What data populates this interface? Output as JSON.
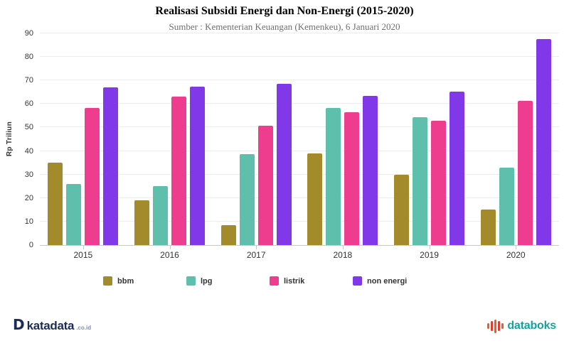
{
  "header": {
    "title": "Realisasi Subsidi Energi dan Non-Energi (2015-2020)",
    "subtitle": "Sumber : Kementerian Keuangan (Kemenkeu), 6 Januari 2020"
  },
  "chart_data": {
    "type": "bar",
    "categories": [
      "2015",
      "2016",
      "2017",
      "2018",
      "2019",
      "2020"
    ],
    "series": [
      {
        "name": "bbm",
        "color": "#a38b2c",
        "values": [
          35.0,
          19.0,
          8.4,
          39.0,
          30.0,
          15.0
        ]
      },
      {
        "name": "lpg",
        "color": "#5dbfac",
        "values": [
          26.0,
          25.2,
          38.7,
          58.3,
          54.3,
          33.0
        ]
      },
      {
        "name": "listrik",
        "color": "#ee3c8f",
        "values": [
          58.3,
          63.1,
          50.6,
          56.5,
          52.9,
          61.3
        ]
      },
      {
        "name": "non energi",
        "color": "#8138e8",
        "values": [
          67.1,
          67.4,
          68.6,
          63.4,
          65.2,
          87.6
        ]
      }
    ],
    "title": "Realisasi Subsidi Energi dan Non-Energi (2015-2020)",
    "subtitle": "Sumber : Kementerian Keuangan (Kemenkeu), 6 Januari 2020",
    "xlabel": "",
    "ylabel": "Rp Triliun",
    "ylim": [
      0,
      90
    ],
    "ytick_step": 10,
    "grid": true,
    "legend_position": "bottom"
  },
  "footer": {
    "katadata_icon": "D",
    "katadata_text": "katadata",
    "katadata_suffix": ".co.id",
    "databoks_text": "databoks"
  }
}
